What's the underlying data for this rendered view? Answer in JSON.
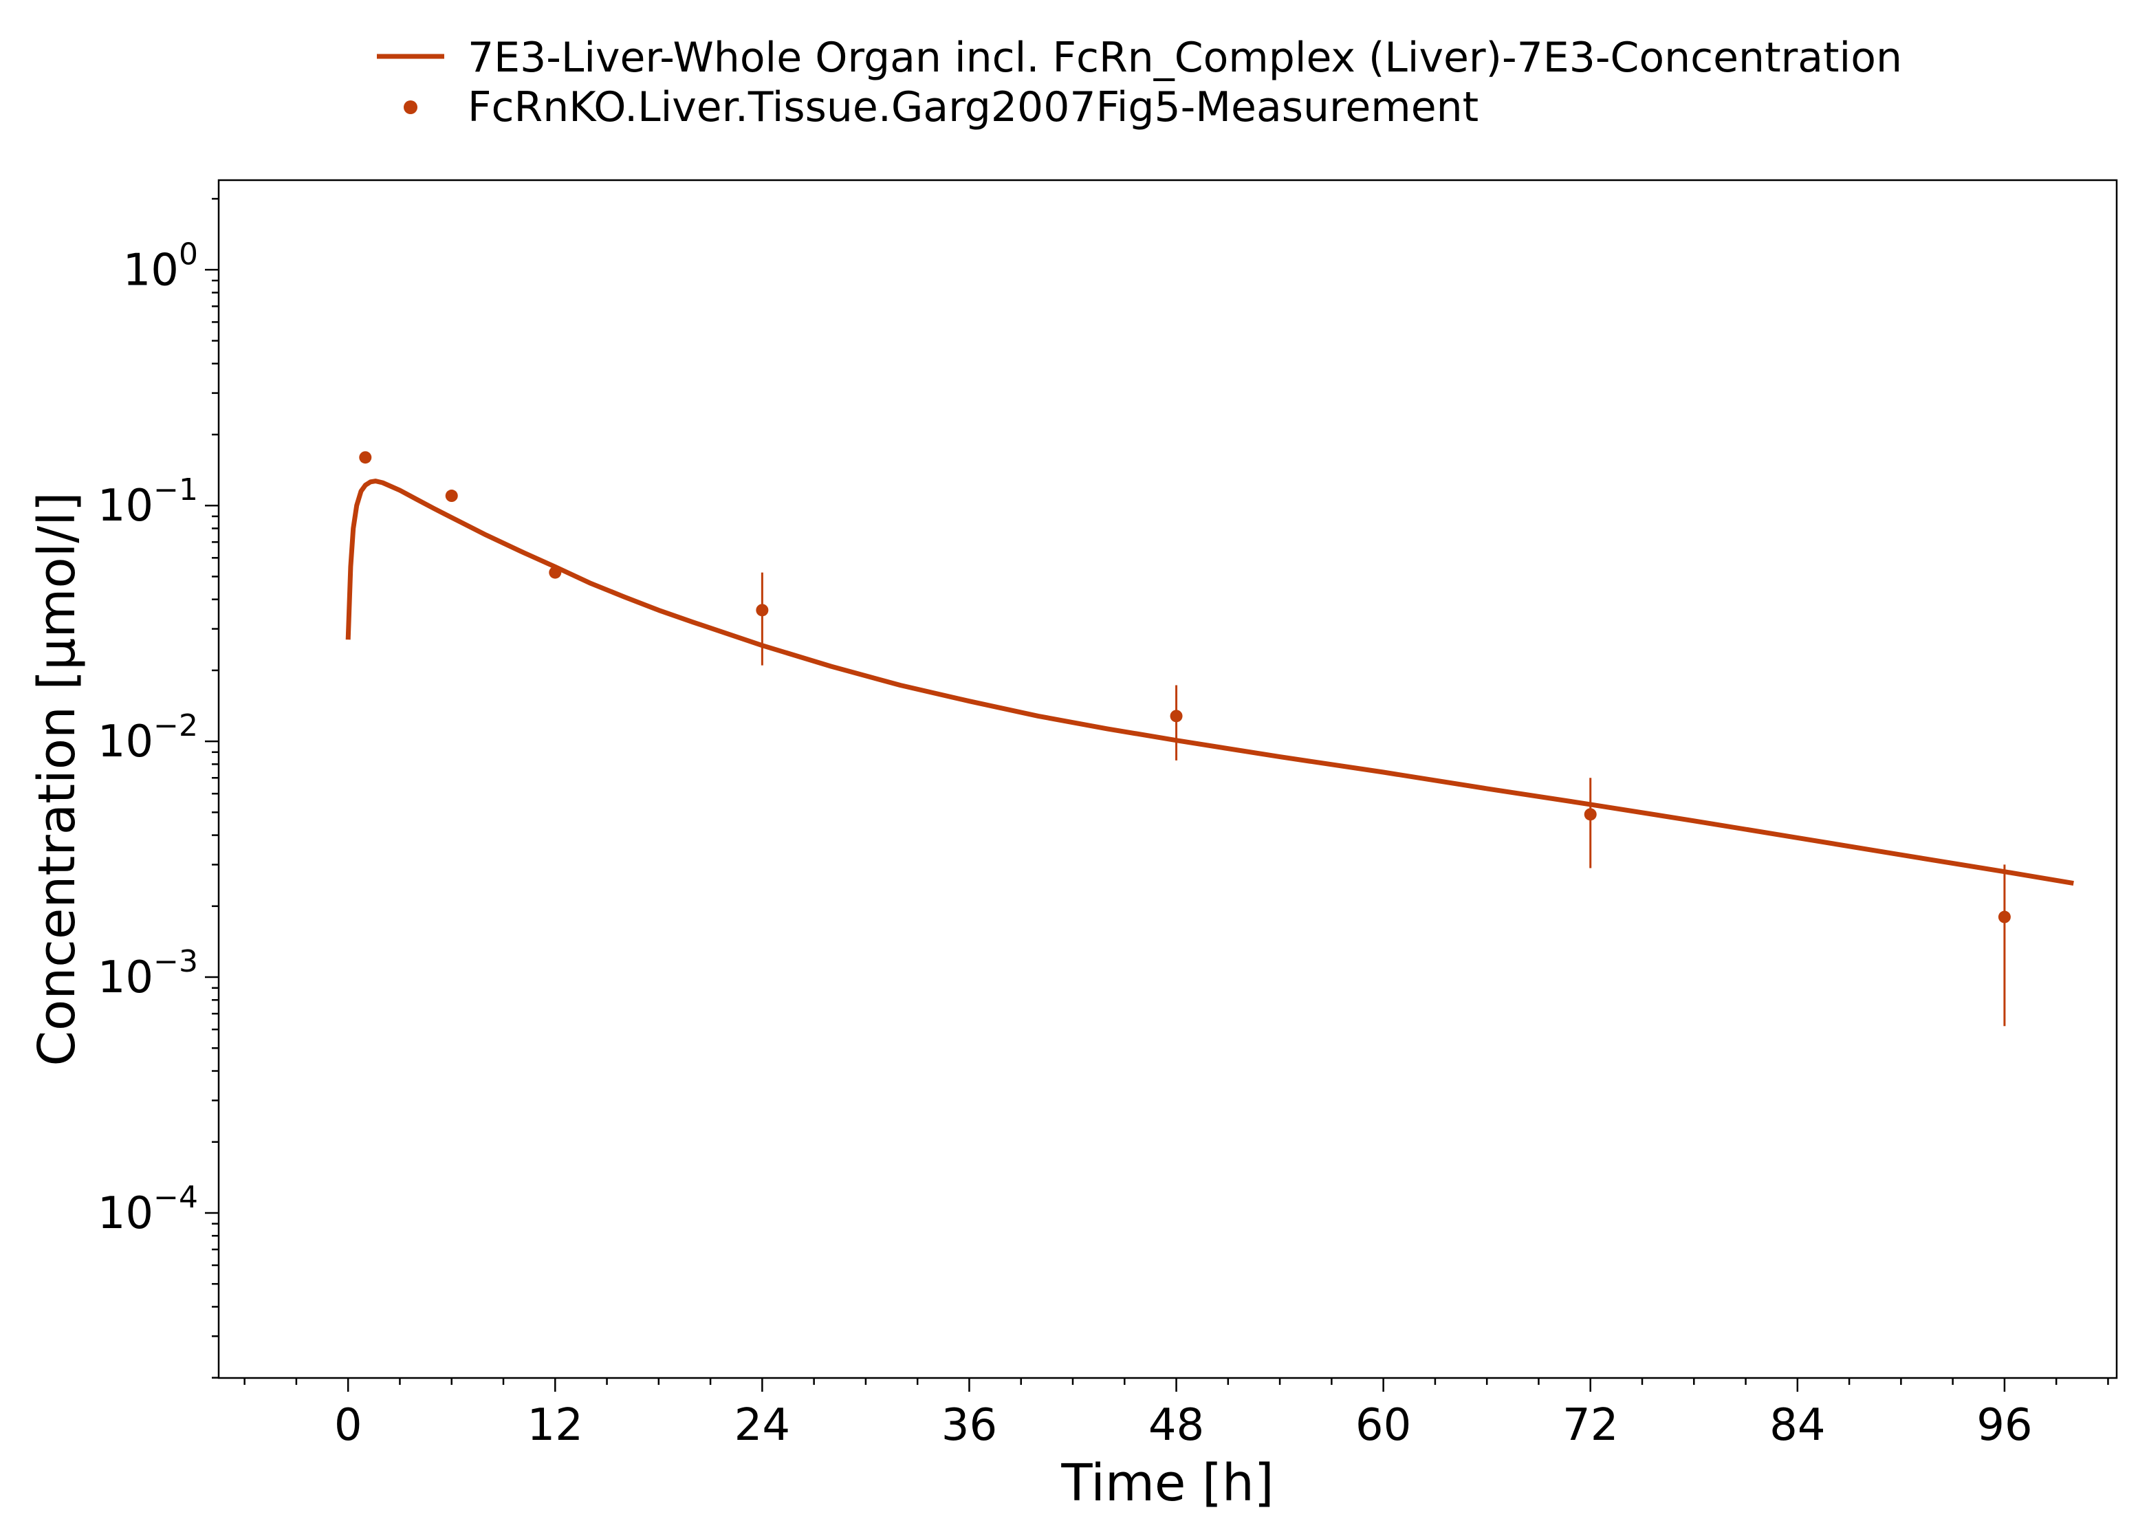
{
  "chart_data": {
    "type": "line",
    "xlabel": "Time [h]",
    "ylabel": "Concentration [µmol/l]",
    "xlim": [
      -7.5,
      102.5
    ],
    "ylim_log10": [
      -4.7,
      0.38
    ],
    "y_scale": "log",
    "x_ticks": [
      0,
      12,
      24,
      36,
      48,
      60,
      72,
      84,
      96
    ],
    "y_ticks": [
      {
        "base": "10",
        "exp": "0",
        "value": 1
      },
      {
        "base": "10",
        "exp": "−1",
        "value": 0.1
      },
      {
        "base": "10",
        "exp": "−2",
        "value": 0.01
      },
      {
        "base": "10",
        "exp": "−3",
        "value": 0.001
      },
      {
        "base": "10",
        "exp": "−4",
        "value": 0.0001
      }
    ],
    "legend_position": "top-center",
    "color": "#BF3E0A",
    "series": [
      {
        "name": "7E3-Liver-Whole Organ incl. FcRn_Complex (Liver)-7E3-Concentration",
        "kind": "line",
        "x": [
          0,
          0.15,
          0.3,
          0.5,
          0.75,
          1,
          1.3,
          1.6,
          2,
          3,
          4,
          5,
          6,
          8,
          10,
          12,
          14,
          16,
          18,
          20,
          24,
          28,
          32,
          36,
          40,
          44,
          48,
          54,
          60,
          66,
          72,
          78,
          84,
          90,
          96,
          100
        ],
        "y": [
          0.027,
          0.055,
          0.08,
          0.1,
          0.115,
          0.122,
          0.126,
          0.127,
          0.125,
          0.116,
          0.106,
          0.097,
          0.089,
          0.075,
          0.064,
          0.055,
          0.047,
          0.041,
          0.036,
          0.032,
          0.0255,
          0.0208,
          0.0173,
          0.0148,
          0.0128,
          0.0113,
          0.0101,
          0.0086,
          0.0074,
          0.0063,
          0.0054,
          0.0046,
          0.0039,
          0.0033,
          0.0028,
          0.0025
        ]
      },
      {
        "name": "FcRnKO.Liver.Tissue.Garg2007Fig5-Measurement",
        "kind": "scatter",
        "x": [
          1,
          6,
          12,
          24,
          48,
          72,
          96
        ],
        "y": [
          0.16,
          0.11,
          0.052,
          0.036,
          0.0128,
          0.0049,
          0.0018
        ],
        "err_low": [
          null,
          null,
          null,
          0.021,
          0.0083,
          0.0029,
          0.00062
        ],
        "err_high": [
          null,
          null,
          null,
          0.052,
          0.0173,
          0.007,
          0.003
        ]
      }
    ]
  }
}
